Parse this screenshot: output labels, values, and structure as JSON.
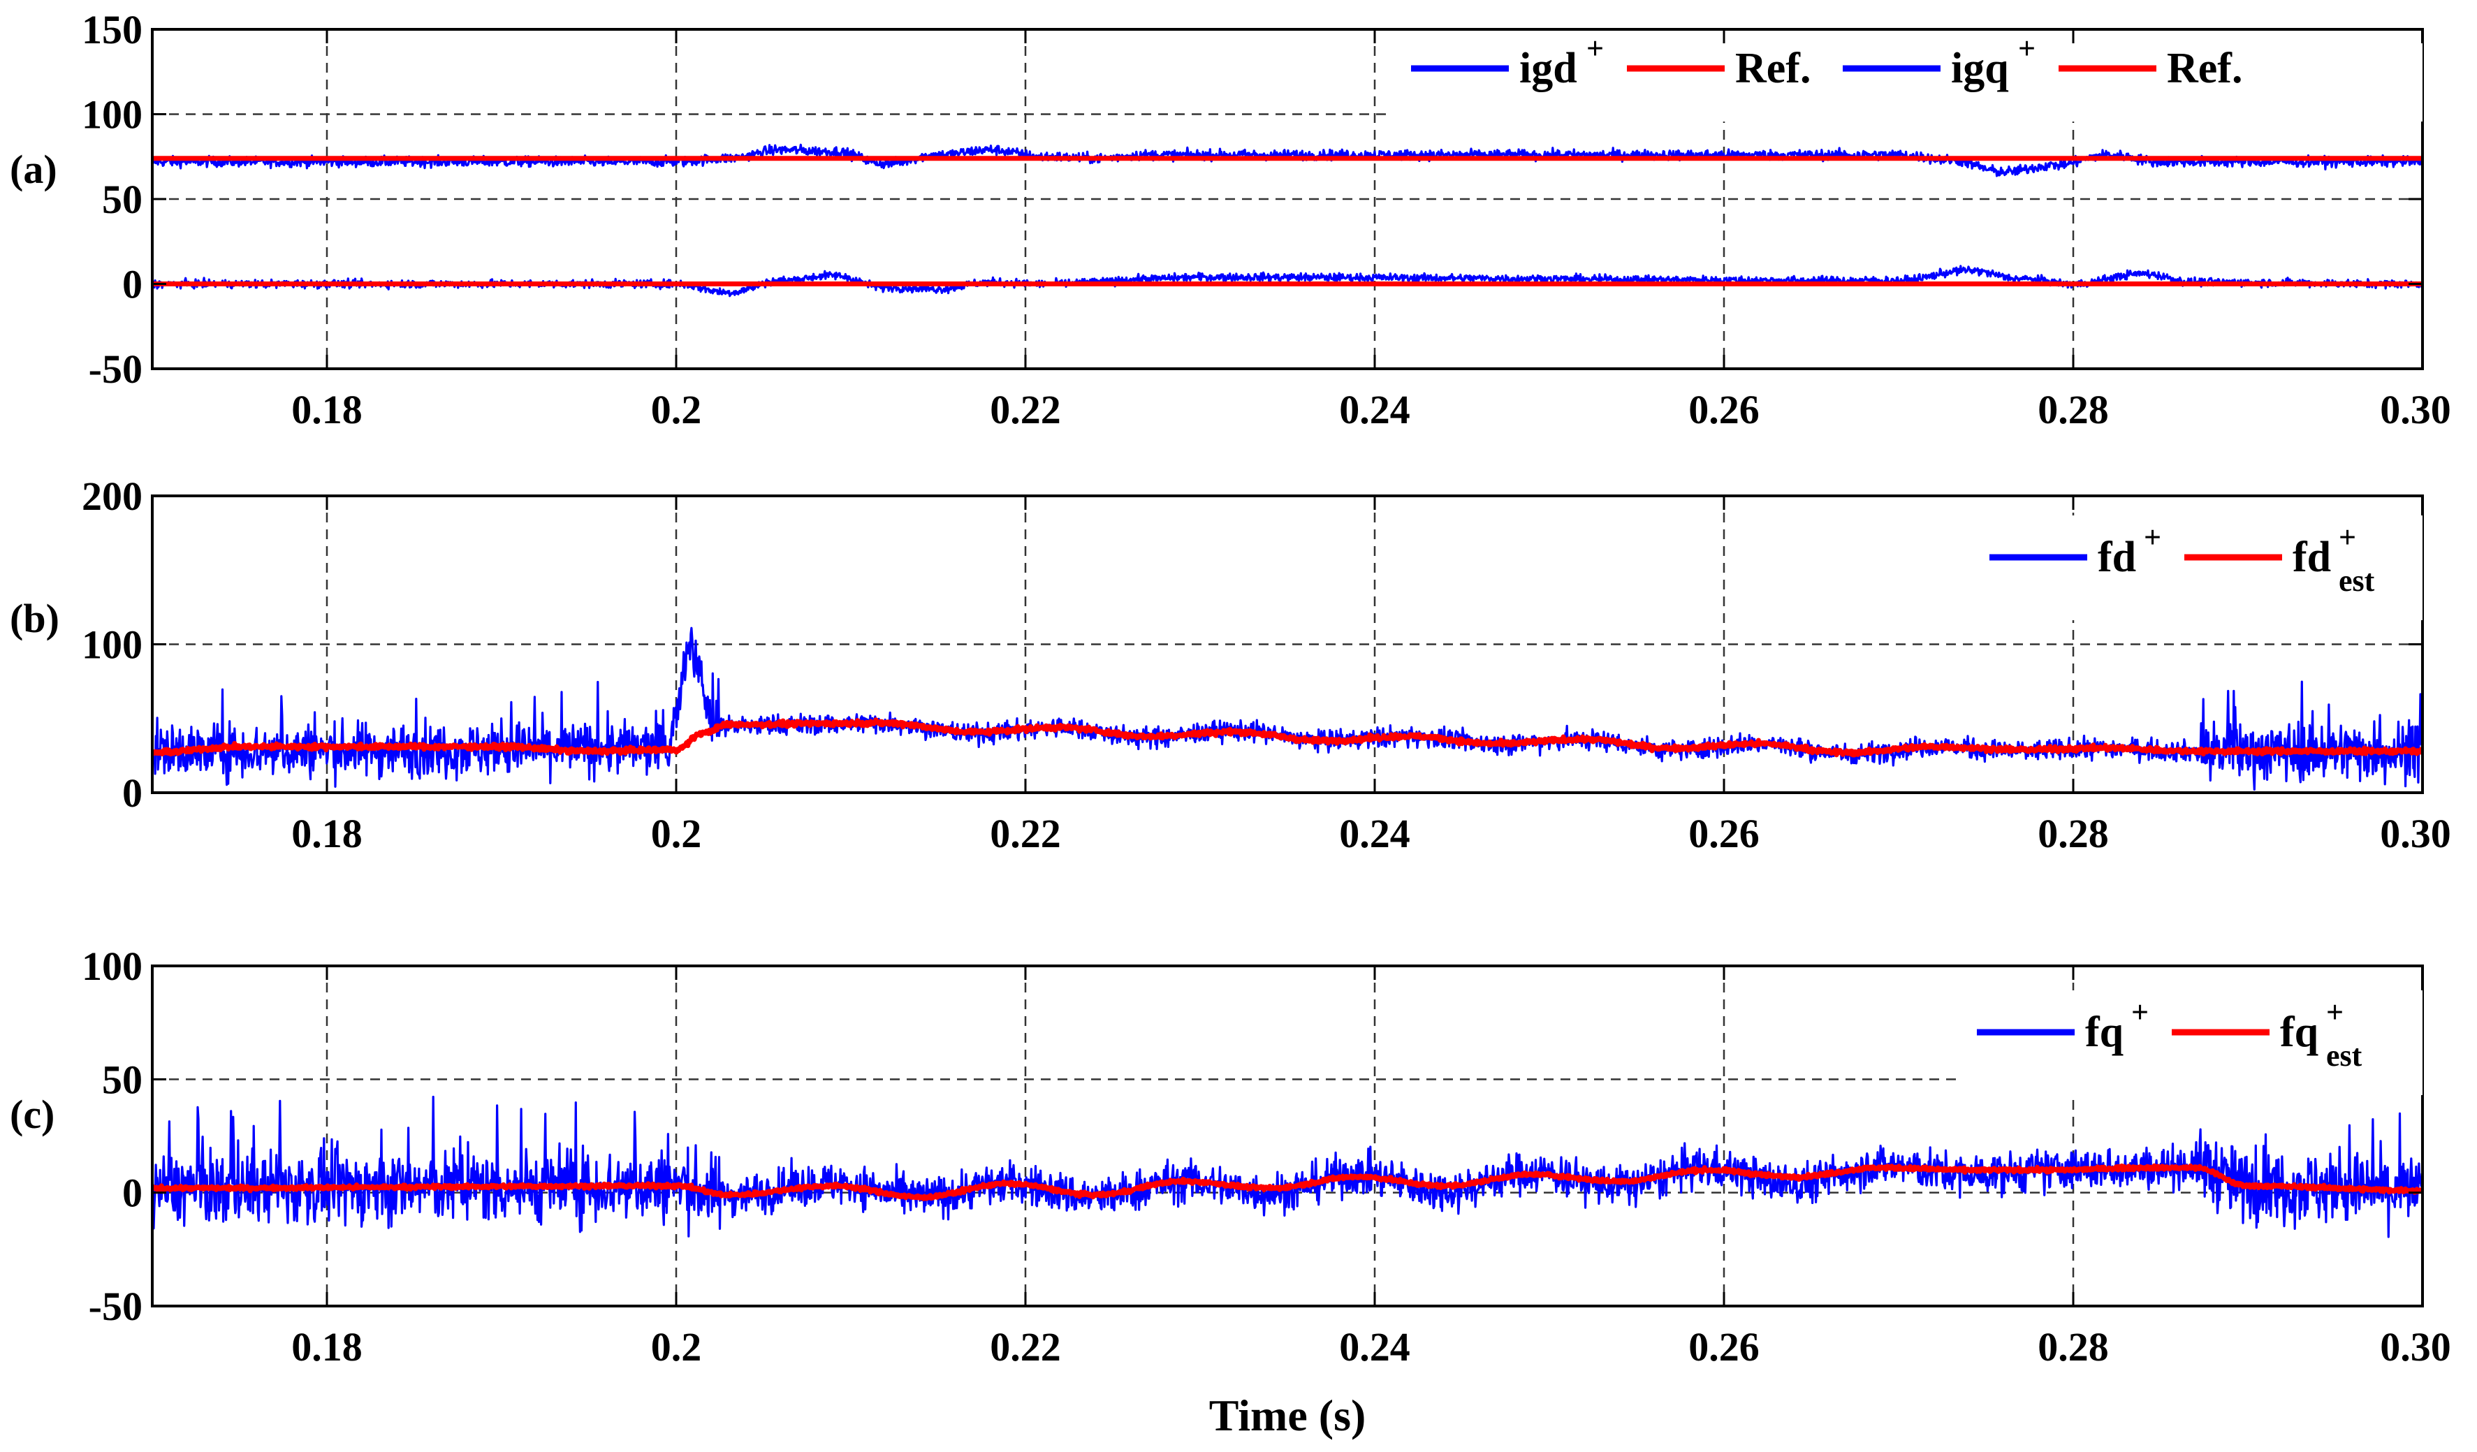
{
  "chart_data": [
    {
      "type": "line",
      "panel_label": "(a)",
      "xlabel": "",
      "ylabel": "",
      "xlim": [
        0.17,
        0.3
      ],
      "ylim": [
        -50,
        150
      ],
      "xticks": [
        0.18,
        0.2,
        0.22,
        0.24,
        0.26,
        0.28,
        0.3
      ],
      "xtick_labels": [
        "0.18",
        "0.2",
        "0.22",
        "0.24",
        "0.26",
        "0.28",
        "0.30"
      ],
      "yticks": [
        -50,
        0,
        50,
        100,
        150
      ],
      "ytick_labels": [
        "-50",
        "0",
        "50",
        "100",
        "150"
      ],
      "grid": true,
      "legend_position": "top-right",
      "series": [
        {
          "name": "igd",
          "name_sup": "+",
          "color": "#0000ff",
          "noise": 1.5,
          "x": [
            0.17,
            0.2,
            0.203,
            0.206,
            0.209,
            0.212,
            0.215,
            0.218,
            0.221,
            0.224,
            0.227,
            0.23,
            0.27,
            0.273,
            0.276,
            0.279,
            0.282,
            0.285,
            0.288,
            0.3
          ],
          "values": [
            72,
            72,
            74,
            79,
            78,
            71,
            76,
            79,
            75,
            74,
            76,
            76,
            76,
            73,
            66,
            70,
            76,
            72,
            72,
            72
          ]
        },
        {
          "name": "Ref.",
          "name_sup": "",
          "color": "#ff0000",
          "noise": 0,
          "x": [
            0.17,
            0.3
          ],
          "values": [
            74,
            74
          ]
        },
        {
          "name": "igq",
          "name_sup": "+",
          "color": "#0000ff",
          "noise": 1.2,
          "x": [
            0.17,
            0.2,
            0.203,
            0.206,
            0.209,
            0.212,
            0.215,
            0.218,
            0.221,
            0.224,
            0.227,
            0.23,
            0.27,
            0.274,
            0.277,
            0.28,
            0.284,
            0.287,
            0.3
          ],
          "values": [
            0,
            0,
            -5,
            2,
            5,
            -2,
            -3,
            1,
            0,
            1,
            3,
            4,
            2,
            8,
            3,
            0,
            6,
            1,
            0
          ]
        },
        {
          "name": "Ref.",
          "name_sup": "",
          "color": "#ff0000",
          "noise": 0,
          "x": [
            0.17,
            0.3
          ],
          "values": [
            0,
            0
          ]
        }
      ]
    },
    {
      "type": "line",
      "panel_label": "(b)",
      "xlabel": "",
      "ylabel": "",
      "xlim": [
        0.17,
        0.3
      ],
      "ylim": [
        0,
        200
      ],
      "xticks": [
        0.18,
        0.2,
        0.22,
        0.24,
        0.26,
        0.28,
        0.3
      ],
      "xtick_labels": [
        "0.18",
        "0.2",
        "0.22",
        "0.24",
        "0.26",
        "0.28",
        "0.30"
      ],
      "yticks": [
        0,
        100,
        200
      ],
      "ytick_labels": [
        "0",
        "100",
        "200"
      ],
      "grid": true,
      "legend_position": "top-right",
      "series": [
        {
          "name": "fd",
          "name_sup": "+",
          "color": "#0000ff",
          "noise": 9,
          "noise_after_0202": 3.5,
          "noise_after_0287": 10,
          "spike": {
            "x": 0.2008,
            "value": 122
          },
          "x": [
            0.17,
            0.2,
            0.2015,
            0.203,
            0.212,
            0.217,
            0.222,
            0.227,
            0.232,
            0.237,
            0.242,
            0.247,
            0.252,
            0.257,
            0.262,
            0.267,
            0.272,
            0.277,
            0.282,
            0.287,
            0.3
          ],
          "values": [
            28,
            30,
            45,
            45,
            47,
            40,
            44,
            37,
            42,
            35,
            38,
            33,
            36,
            29,
            33,
            26,
            31,
            28,
            30,
            28,
            28
          ]
        },
        {
          "name": "fd",
          "name_sup": "+",
          "name_sub": "est",
          "color": "#ff0000",
          "noise": 0.8,
          "x": [
            0.17,
            0.175,
            0.18,
            0.19,
            0.195,
            0.2,
            0.2015,
            0.203,
            0.212,
            0.217,
            0.222,
            0.227,
            0.232,
            0.237,
            0.242,
            0.247,
            0.252,
            0.257,
            0.262,
            0.267,
            0.272,
            0.277,
            0.282,
            0.287,
            0.3
          ],
          "values": [
            27,
            31,
            31,
            31,
            28,
            29,
            40,
            46,
            47,
            41,
            44,
            38,
            41,
            35,
            38,
            33,
            36,
            30,
            33,
            27,
            31,
            29,
            30,
            28,
            28
          ]
        }
      ]
    },
    {
      "type": "line",
      "panel_label": "(c)",
      "xlabel": "Time (s)",
      "ylabel": "",
      "xlim": [
        0.17,
        0.3
      ],
      "ylim": [
        -50,
        100
      ],
      "xticks": [
        0.18,
        0.2,
        0.22,
        0.24,
        0.26,
        0.28,
        0.3
      ],
      "xtick_labels": [
        "0.18",
        "0.2",
        "0.22",
        "0.24",
        "0.26",
        "0.28",
        "0.30"
      ],
      "yticks": [
        -50,
        0,
        50,
        100
      ],
      "ytick_labels": [
        "-50",
        "0",
        "50",
        "100"
      ],
      "grid": true,
      "legend_position": "top-right",
      "series": [
        {
          "name": "fq",
          "name_sup": "+",
          "color": "#0000ff",
          "noise": 8,
          "noise_after_0202": 4.5,
          "noise_after_0287": 8,
          "x": [
            0.17,
            0.2,
            0.203,
            0.209,
            0.214,
            0.219,
            0.224,
            0.229,
            0.234,
            0.239,
            0.244,
            0.249,
            0.254,
            0.259,
            0.264,
            0.269,
            0.274,
            0.279,
            0.284,
            0.287,
            0.29,
            0.3
          ],
          "values": [
            2,
            3,
            -1,
            4,
            -2,
            4,
            -2,
            5,
            0,
            8,
            1,
            9,
            3,
            11,
            4,
            12,
            8,
            10,
            11,
            12,
            3,
            1
          ]
        },
        {
          "name": "fq",
          "name_sup": "+",
          "name_sub": "est",
          "color": "#ff0000",
          "noise": 0.4,
          "x": [
            0.17,
            0.2,
            0.203,
            0.209,
            0.214,
            0.219,
            0.224,
            0.229,
            0.234,
            0.239,
            0.244,
            0.249,
            0.254,
            0.259,
            0.264,
            0.269,
            0.274,
            0.279,
            0.284,
            0.287,
            0.29,
            0.3
          ],
          "values": [
            2,
            3,
            -1,
            3,
            -2,
            4,
            -1,
            5,
            2,
            7,
            3,
            8,
            5,
            10,
            7,
            11,
            10,
            10,
            11,
            11,
            3,
            1
          ]
        }
      ]
    }
  ]
}
